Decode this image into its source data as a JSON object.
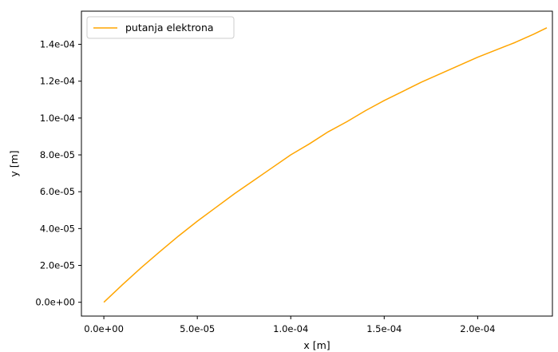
{
  "chart_data": {
    "type": "line",
    "xlabel": "x [m]",
    "ylabel": "y [m]",
    "xlim": [
      -1.2e-05,
      0.00024
    ],
    "ylim": [
      -7.5e-06,
      0.000158
    ],
    "xticks": [
      0,
      5e-05,
      0.0001,
      0.00015,
      0.0002
    ],
    "xtick_labels": [
      "0.0e+00",
      "5.0e-05",
      "1.0e-04",
      "1.5e-04",
      "2.0e-04"
    ],
    "yticks": [
      0,
      2e-05,
      4e-05,
      6e-05,
      8e-05,
      0.0001,
      0.00012,
      0.00014
    ],
    "ytick_labels": [
      "0.0e+00",
      "2.0e-05",
      "4.0e-05",
      "6.0e-05",
      "8.0e-05",
      "1.0e-04",
      "1.2e-04",
      "1.4e-04"
    ],
    "grid": false,
    "legend_position": "top-left",
    "series": [
      {
        "name": "putanja elektrona",
        "color": "#ffa500",
        "x": [
          0,
          1e-05,
          2e-05,
          3e-05,
          4e-05,
          5e-05,
          6e-05,
          7e-05,
          8e-05,
          9e-05,
          0.0001,
          0.00011,
          0.00012,
          0.00013,
          0.00014,
          0.00015,
          0.00016,
          0.00017,
          0.00018,
          0.00019,
          0.0002,
          0.00021,
          0.00022,
          0.00023,
          0.000237
        ],
        "y": [
          0,
          9.6e-06,
          1.88e-05,
          2.75e-05,
          3.6e-05,
          4.4e-05,
          5.15e-05,
          5.9e-05,
          6.6e-05,
          7.3e-05,
          8e-05,
          8.6e-05,
          9.25e-05,
          9.8e-05,
          0.000104,
          0.0001095,
          0.0001145,
          0.0001195,
          0.000124,
          0.0001285,
          0.000133,
          0.000137,
          0.000141,
          0.0001455,
          0.000149
        ]
      }
    ]
  }
}
